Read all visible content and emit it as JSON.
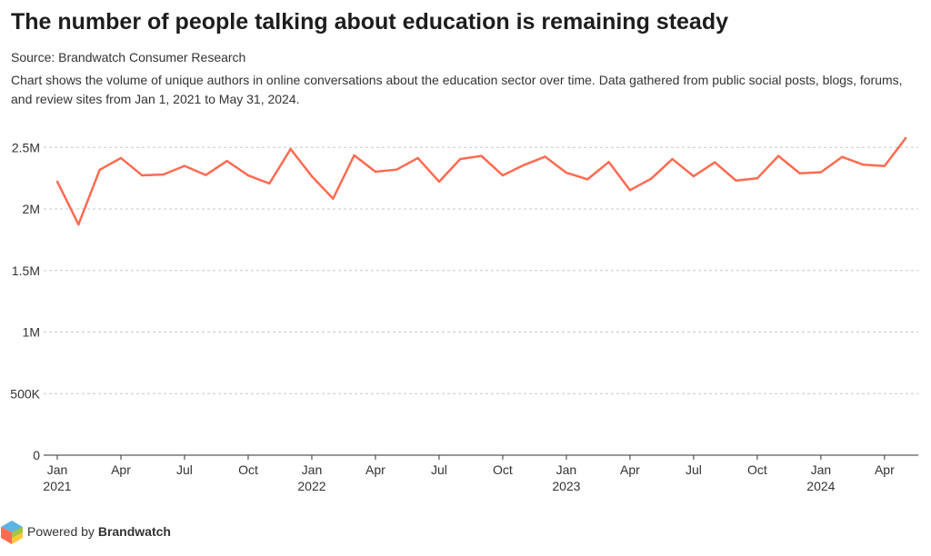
{
  "title": "The number of people talking about education is remaining steady",
  "source": "Source: Brandwatch Consumer Research",
  "description": "Chart shows the volume of unique authors in online conversations about the education sector over time. Data gathered from public social posts, blogs, forums, and review sites from Jan 1, 2021 to May 31, 2024.",
  "footer": {
    "prefix": "Powered by ",
    "brand": "Brandwatch"
  },
  "colors": {
    "line": "#ff6b52",
    "grid": "#c8c8c8"
  },
  "chart_data": {
    "type": "line",
    "x_start": "2021-01",
    "x_end": "2024-05",
    "grid": "horizontal dashed",
    "ylim": [
      0,
      2500000
    ],
    "y_ticks": [
      {
        "v": 0,
        "label": "0"
      },
      {
        "v": 500000,
        "label": "500K"
      },
      {
        "v": 1000000,
        "label": "1M"
      },
      {
        "v": 1500000,
        "label": "1.5M"
      },
      {
        "v": 2000000,
        "label": "2M"
      },
      {
        "v": 2500000,
        "label": "2.5M"
      }
    ],
    "x_ticks": [
      {
        "i": 0,
        "label": "Jan",
        "year": "2021"
      },
      {
        "i": 3,
        "label": "Apr"
      },
      {
        "i": 6,
        "label": "Jul"
      },
      {
        "i": 9,
        "label": "Oct"
      },
      {
        "i": 12,
        "label": "Jan",
        "year": "2022"
      },
      {
        "i": 15,
        "label": "Apr"
      },
      {
        "i": 18,
        "label": "Jul"
      },
      {
        "i": 21,
        "label": "Oct"
      },
      {
        "i": 24,
        "label": "Jan",
        "year": "2023"
      },
      {
        "i": 27,
        "label": "Apr"
      },
      {
        "i": 30,
        "label": "Jul"
      },
      {
        "i": 33,
        "label": "Oct"
      },
      {
        "i": 36,
        "label": "Jan",
        "year": "2024"
      },
      {
        "i": 39,
        "label": "Apr"
      }
    ],
    "values": [
      2222000,
      1874000,
      2318000,
      2414000,
      2273000,
      2280000,
      2350000,
      2276000,
      2390000,
      2273000,
      2207000,
      2487000,
      2266000,
      2084000,
      2436000,
      2303000,
      2320000,
      2414000,
      2222000,
      2406000,
      2431000,
      2273000,
      2357000,
      2425000,
      2295000,
      2241000,
      2382000,
      2153000,
      2246000,
      2406000,
      2266000,
      2379000,
      2231000,
      2249000,
      2431000,
      2290000,
      2298000,
      2423000,
      2360000,
      2349000,
      2576000
    ]
  }
}
